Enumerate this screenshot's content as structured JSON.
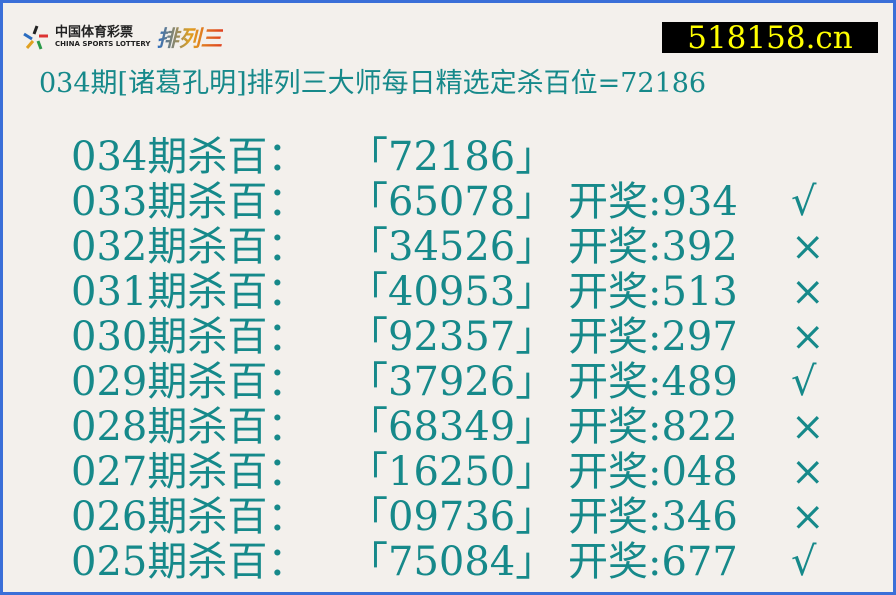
{
  "logo": {
    "cn": "中国体育彩票",
    "en": "CHINA SPORTS LOTTERY",
    "game": "排列三"
  },
  "site": "518158.cn",
  "title": "034期[诸葛孔明]排列三大师每日精选定杀百位=72186",
  "rows": [
    {
      "label": "034期杀百：",
      "nums": "「72186」",
      "draw": "",
      "mark": ""
    },
    {
      "label": "033期杀百：",
      "nums": "「65078」",
      "draw": "开奖:934",
      "mark": "√"
    },
    {
      "label": "032期杀百：",
      "nums": "「34526」",
      "draw": "开奖:392",
      "mark": "×"
    },
    {
      "label": "031期杀百：",
      "nums": "「40953」",
      "draw": "开奖:513",
      "mark": "×"
    },
    {
      "label": "030期杀百：",
      "nums": "「92357」",
      "draw": "开奖:297",
      "mark": "×"
    },
    {
      "label": "029期杀百：",
      "nums": "「37926」",
      "draw": "开奖:489",
      "mark": "√"
    },
    {
      "label": "028期杀百：",
      "nums": "「68349」",
      "draw": "开奖:822",
      "mark": "×"
    },
    {
      "label": "027期杀百：",
      "nums": "「16250」",
      "draw": "开奖:048",
      "mark": "×"
    },
    {
      "label": "026期杀百：",
      "nums": "「09736」",
      "draw": "开奖:346",
      "mark": "×"
    },
    {
      "label": "025期杀百：",
      "nums": "「75084」",
      "draw": "开奖:677",
      "mark": "√"
    }
  ],
  "colors": {
    "text": "#16898a",
    "border": "#3a6fd8",
    "site_bg": "#000000",
    "site_text": "#ffff00"
  }
}
